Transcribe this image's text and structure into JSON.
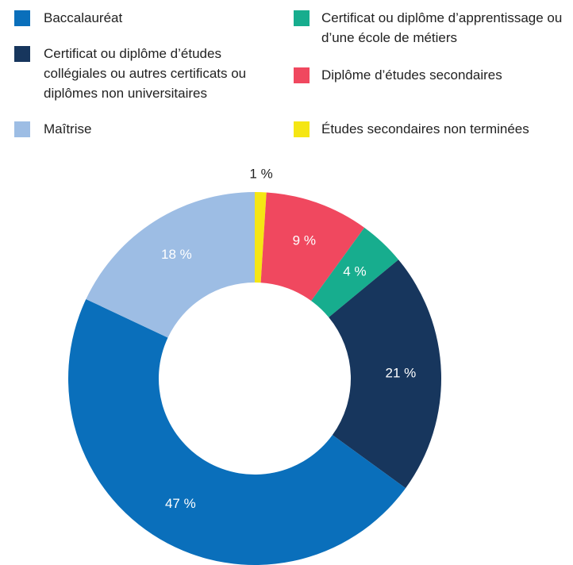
{
  "chart_data": {
    "type": "donut",
    "categories": [
      "Études secondaires non terminées",
      "Diplôme d’études secondaires",
      "Certificat ou diplôme d’apprentis­sage ou d’une école de métiers",
      "Certificat ou diplôme d’études collégiales ou autres certificats ou diplômes non universitaires",
      "Baccalauréat",
      "Maîtrise"
    ],
    "values": [
      1,
      9,
      4,
      21,
      47,
      18
    ],
    "value_labels": [
      "1 %",
      "9 %",
      "4 %",
      "21 %",
      "47 %",
      "18 %"
    ],
    "colors": [
      "#f5e614",
      "#f0485f",
      "#17ad8e",
      "#17365d",
      "#0a6fbb",
      "#9dbde4"
    ],
    "legend": "top"
  }
}
